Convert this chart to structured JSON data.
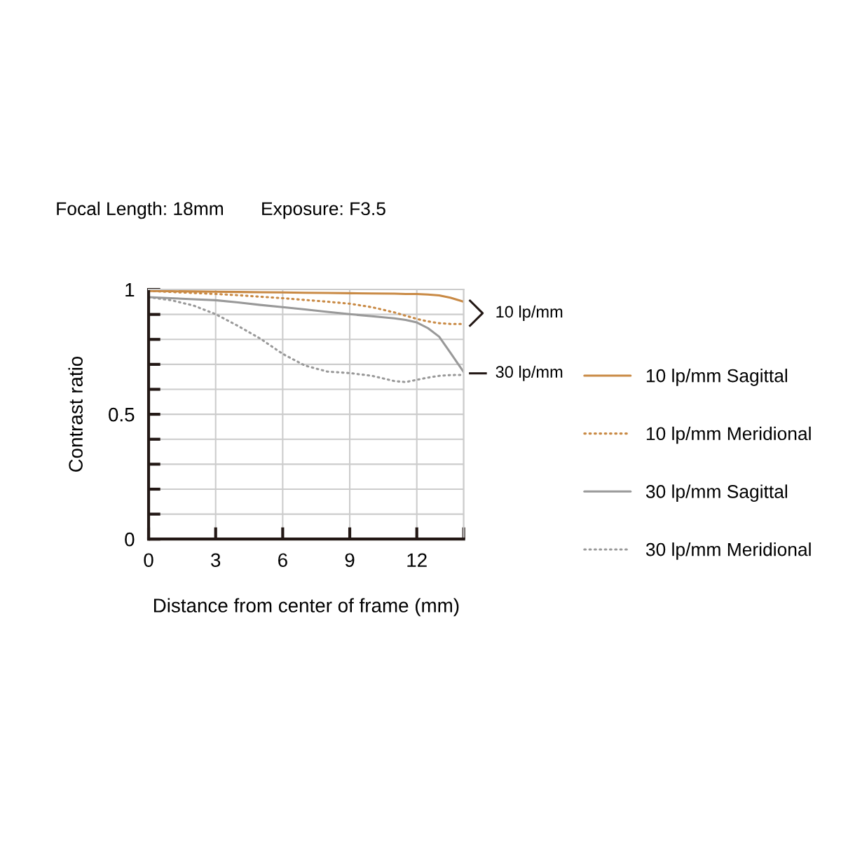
{
  "chart_data": {
    "type": "line",
    "title": "Focal Length: 18mm",
    "subtitle": "Exposure: F3.5",
    "xlabel": "Distance from center of frame (mm)",
    "ylabel": "Contrast ratio",
    "x": [
      0,
      1,
      2,
      3,
      4,
      5,
      6,
      7,
      8,
      9,
      10,
      11,
      11.5,
      12,
      12.5,
      13,
      13.5,
      14.1
    ],
    "series": [
      {
        "name": "10 lp/mm Sagittal",
        "color": "#c98a45",
        "line_style": "solid",
        "values": [
          0.994,
          0.993,
          0.992,
          0.991,
          0.99,
          0.989,
          0.988,
          0.987,
          0.986,
          0.985,
          0.984,
          0.983,
          0.982,
          0.982,
          0.98,
          0.976,
          0.967,
          0.951
        ]
      },
      {
        "name": "10 lp/mm Meridional",
        "color": "#c98a45",
        "line_style": "dotted",
        "values": [
          0.994,
          0.99,
          0.986,
          0.982,
          0.977,
          0.971,
          0.965,
          0.958,
          0.951,
          0.943,
          0.929,
          0.908,
          0.895,
          0.882,
          0.872,
          0.865,
          0.862,
          0.862
        ]
      },
      {
        "name": "30 lp/mm Sagittal",
        "color": "#999999",
        "line_style": "solid",
        "values": [
          0.969,
          0.965,
          0.961,
          0.957,
          0.948,
          0.938,
          0.929,
          0.92,
          0.91,
          0.901,
          0.893,
          0.884,
          0.878,
          0.868,
          0.845,
          0.811,
          0.747,
          0.669
        ]
      },
      {
        "name": "30 lp/mm Meridional",
        "color": "#999999",
        "line_style": "dotted",
        "values": [
          0.969,
          0.957,
          0.936,
          0.901,
          0.854,
          0.803,
          0.742,
          0.695,
          0.671,
          0.665,
          0.654,
          0.633,
          0.629,
          0.638,
          0.647,
          0.654,
          0.657,
          0.658
        ]
      }
    ],
    "xlim": [
      0,
      14.1
    ],
    "ylim": [
      0,
      1
    ],
    "xticks": [
      0,
      3,
      6,
      9,
      12,
      {
        "value": 14.1,
        "label": null
      }
    ],
    "yticks": [
      0,
      {
        "value": 0.1,
        "label": null
      },
      {
        "value": 0.2,
        "label": null
      },
      {
        "value": 0.3,
        "label": null
      },
      {
        "value": 0.4,
        "label": null
      },
      0.5,
      {
        "value": 0.6,
        "label": null
      },
      {
        "value": 0.7,
        "label": null
      },
      {
        "value": 0.8,
        "label": null
      },
      {
        "value": 0.9,
        "label": null
      },
      1
    ],
    "grid": true,
    "legend": "right",
    "annotations": [
      "10 lp/mm",
      "30 lp/mm"
    ]
  }
}
